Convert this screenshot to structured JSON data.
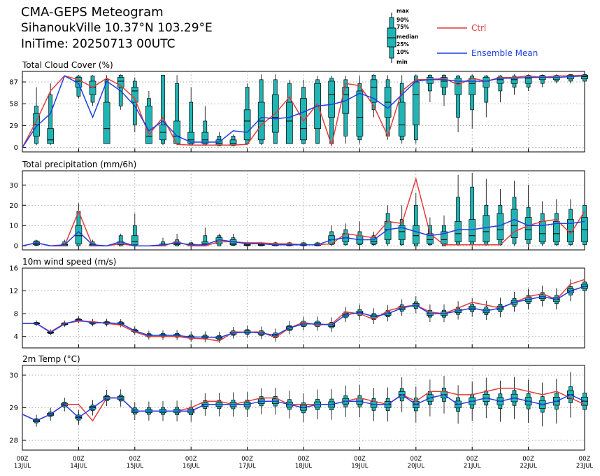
{
  "header": {
    "title": "CMA-GEPS Meteogram",
    "location": "SihanoukVille  10.37°N  103.29°E",
    "init_time": "IniTime: 20250713 00UTC"
  },
  "legend": {
    "key_labels": [
      "max",
      "90%",
      "75%",
      "median",
      "25%",
      "10%",
      "min"
    ],
    "ctrl_label": "Ctrl",
    "mean_label": "Ensemble Mean",
    "ctrl_color": "#e03c3c",
    "mean_color": "#1f3fe0",
    "box_color": "#20b5b5"
  },
  "chart_data": [
    {
      "type": "box",
      "title": "Total Cloud Cover (%)",
      "ylim": [
        -6,
        101
      ],
      "yticks": [
        0,
        29,
        58,
        87
      ],
      "xticks": [
        "00Z 13JUL",
        "00Z 14JUL",
        "00Z 15JUL",
        "00Z 16JUL",
        "00Z 17JUL",
        "00Z 18JUL",
        "00Z 19JUL",
        "00Z 20JUL",
        "00Z 21JUL",
        "00Z 22JUL",
        "00Z 23JUL"
      ],
      "x_hours": [
        0,
        6,
        12,
        18,
        24,
        30,
        36,
        42,
        48,
        54,
        60,
        66,
        72,
        78,
        84,
        90,
        96,
        102,
        108,
        114,
        120,
        126,
        132,
        138,
        144,
        150,
        156,
        162,
        168,
        174,
        180,
        186,
        192,
        198,
        204,
        210,
        216,
        222,
        228,
        234,
        240
      ],
      "ctrl": [
        0,
        35,
        75,
        95,
        90,
        80,
        92,
        82,
        65,
        17,
        40,
        4,
        3,
        3,
        3,
        3,
        4,
        30,
        45,
        67,
        35,
        58,
        3,
        85,
        82,
        55,
        15,
        75,
        90,
        90,
        92,
        83,
        92,
        88,
        93,
        93,
        95,
        93,
        95,
        95,
        96
      ],
      "mean": [
        0,
        28,
        45,
        95,
        85,
        40,
        88,
        75,
        55,
        22,
        35,
        15,
        7,
        7,
        7,
        22,
        20,
        40,
        38,
        40,
        47,
        55,
        57,
        62,
        72,
        65,
        52,
        70,
        88,
        90,
        90,
        88,
        88,
        88,
        92,
        92,
        93,
        93,
        93,
        94,
        95
      ],
      "boxes": [
        null,
        [
          3,
          5,
          15,
          30,
          45,
          55,
          80
        ],
        [
          3,
          5,
          5,
          10,
          25,
          70,
          85
        ],
        null,
        [
          65,
          68,
          80,
          88,
          93,
          95,
          96
        ],
        [
          55,
          60,
          70,
          80,
          88,
          95,
          96
        ],
        [
          5,
          5,
          5,
          25,
          60,
          90,
          96
        ],
        [
          50,
          55,
          80,
          88,
          93,
          96,
          97
        ],
        [
          20,
          30,
          60,
          75,
          80,
          88,
          93
        ],
        [
          5,
          5,
          5,
          15,
          55,
          65,
          75
        ],
        [
          3,
          5,
          10,
          20,
          30,
          96,
          96
        ],
        [
          3,
          5,
          5,
          15,
          35,
          85,
          96
        ],
        [
          2,
          3,
          5,
          10,
          20,
          60,
          80
        ],
        [
          2,
          3,
          5,
          10,
          20,
          35,
          55
        ],
        [
          2,
          2,
          3,
          5,
          10,
          15,
          20
        ],
        [
          2,
          2,
          3,
          5,
          10,
          15,
          17
        ],
        [
          3,
          5,
          10,
          35,
          50,
          80,
          85
        ],
        [
          3,
          5,
          10,
          35,
          60,
          90,
          97
        ],
        [
          5,
          5,
          20,
          40,
          70,
          90,
          97
        ],
        [
          5,
          5,
          5,
          35,
          60,
          85,
          90
        ],
        [
          5,
          5,
          10,
          25,
          65,
          80,
          90
        ],
        [
          5,
          5,
          25,
          55,
          85,
          90,
          95
        ],
        [
          5,
          5,
          40,
          70,
          88,
          92,
          95
        ],
        [
          5,
          15,
          45,
          70,
          80,
          90,
          95
        ],
        [
          5,
          10,
          15,
          40,
          75,
          85,
          95
        ],
        [
          40,
          50,
          60,
          80,
          90,
          96,
          97
        ],
        [
          10,
          15,
          40,
          60,
          80,
          90,
          96
        ],
        [
          5,
          10,
          15,
          30,
          60,
          85,
          96
        ],
        [
          5,
          10,
          30,
          70,
          87,
          95,
          97
        ],
        [
          60,
          75,
          85,
          90,
          93,
          96,
          97
        ],
        [
          55,
          70,
          80,
          88,
          93,
          96,
          97
        ],
        [
          20,
          40,
          70,
          85,
          92,
          95,
          96
        ],
        [
          25,
          50,
          70,
          85,
          92,
          95,
          97
        ],
        [
          40,
          60,
          80,
          88,
          93,
          95,
          96
        ],
        [
          60,
          75,
          85,
          90,
          93,
          95,
          96
        ],
        [
          70,
          80,
          85,
          90,
          93,
          95,
          97
        ],
        [
          75,
          80,
          85,
          92,
          95,
          96,
          97
        ],
        [
          80,
          85,
          90,
          93,
          95,
          96,
          97
        ],
        [
          85,
          88,
          90,
          93,
          95,
          96,
          97
        ],
        [
          85,
          88,
          91,
          94,
          96,
          97,
          97
        ],
        [
          85,
          88,
          91,
          94,
          96,
          97,
          97
        ]
      ]
    },
    {
      "type": "box",
      "title": "Total precipitation (mm/6h)",
      "ylim": [
        -2,
        37
      ],
      "yticks": [
        0,
        10,
        20,
        30
      ],
      "xticks": [
        "00Z 13JUL",
        "00Z 14JUL",
        "00Z 15JUL",
        "00Z 16JUL",
        "00Z 17JUL",
        "00Z 18JUL",
        "00Z 19JUL",
        "00Z 20JUL",
        "00Z 21JUL",
        "00Z 22JUL",
        "00Z 23JUL"
      ],
      "x_hours": [
        0,
        6,
        12,
        18,
        24,
        30,
        36,
        42,
        48,
        54,
        60,
        66,
        72,
        78,
        84,
        90,
        96,
        102,
        108,
        114,
        120,
        126,
        132,
        138,
        144,
        150,
        156,
        162,
        168,
        174,
        180,
        186,
        192,
        198,
        204,
        210,
        216,
        222,
        228,
        234,
        240
      ],
      "ctrl": [
        0,
        1.5,
        0,
        0,
        17,
        0,
        0,
        1,
        0,
        0,
        0,
        2,
        0,
        0,
        2,
        2,
        1.5,
        1.5,
        1,
        1,
        0.5,
        0.5,
        1,
        6,
        5,
        4,
        12,
        11,
        33,
        6,
        0.5,
        0.5,
        0.5,
        0.5,
        0.5,
        7,
        10,
        12,
        13,
        6,
        17
      ],
      "mean": [
        0,
        1.5,
        0,
        0.5,
        7,
        0.5,
        0,
        2,
        0,
        0,
        0.5,
        1.5,
        0.5,
        0.5,
        3,
        2,
        1,
        1,
        0.5,
        0.5,
        0.5,
        0.5,
        3,
        4,
        3,
        3,
        8,
        9,
        7,
        5,
        6,
        8,
        8,
        9,
        10,
        13,
        10,
        10,
        11,
        11,
        12
      ],
      "boxes": [
        null,
        [
          0,
          0.2,
          0.5,
          1,
          2,
          2.5,
          3
        ],
        null,
        [
          0,
          0,
          0,
          0.5,
          1,
          2,
          3
        ],
        [
          0,
          0,
          1,
          5,
          10,
          17,
          21
        ],
        [
          0,
          0,
          0,
          0.5,
          1,
          2,
          3
        ],
        null,
        [
          0,
          0,
          0.5,
          1,
          2,
          5,
          6
        ],
        [
          0,
          0,
          0.5,
          2,
          5,
          10,
          16
        ],
        null,
        [
          0,
          0,
          0,
          0.3,
          1,
          2,
          4
        ],
        [
          0,
          0,
          0.5,
          1,
          2,
          3,
          6
        ],
        [
          0,
          0,
          0,
          0.5,
          1,
          1.5,
          2
        ],
        [
          0,
          0,
          0.5,
          1,
          2,
          5,
          9
        ],
        [
          0,
          0,
          1,
          2,
          4,
          5,
          6
        ],
        [
          0,
          0.2,
          0.5,
          1,
          3,
          4,
          6
        ],
        [
          0,
          0,
          0.2,
          0.5,
          1,
          1.5,
          2
        ],
        [
          0,
          0,
          0.2,
          0.5,
          1,
          1.5,
          2
        ],
        [
          0,
          0,
          0.2,
          0.5,
          1,
          1.5,
          2
        ],
        [
          0,
          0,
          0.2,
          0.5,
          1,
          1.5,
          2
        ],
        [
          0,
          0,
          0.2,
          0.5,
          1,
          1.5,
          2
        ],
        [
          0,
          0,
          0.2,
          0.5,
          1,
          1.5,
          2
        ],
        [
          0,
          0.5,
          1,
          3,
          5,
          7,
          10
        ],
        [
          0,
          0.5,
          2,
          4,
          6,
          8,
          11
        ],
        [
          0,
          0.5,
          1,
          3,
          5,
          7,
          12
        ],
        [
          0,
          0.5,
          1,
          2,
          4,
          5,
          7
        ],
        [
          0,
          1,
          3,
          8,
          12,
          16,
          20
        ],
        [
          0,
          0.5,
          3,
          7,
          10,
          13,
          20
        ],
        [
          0,
          0,
          1,
          5,
          10,
          20,
          26
        ],
        [
          0,
          0.5,
          1,
          3,
          6,
          10,
          14
        ],
        [
          0,
          0,
          1,
          3,
          7,
          10,
          15
        ],
        [
          0,
          0.5,
          2,
          6,
          12,
          24,
          35
        ],
        [
          0,
          0.5,
          2,
          5,
          13,
          29,
          36
        ],
        [
          0,
          0.5,
          2,
          7,
          15,
          20,
          33
        ],
        [
          0,
          0.5,
          3,
          8,
          16,
          20,
          28
        ],
        [
          0,
          1,
          4,
          10,
          18,
          24,
          32
        ],
        [
          0,
          1,
          3,
          8,
          14,
          19,
          30
        ],
        [
          0,
          1,
          2,
          6,
          12,
          16,
          22
        ],
        [
          0,
          0.5,
          2,
          6,
          12,
          16,
          23
        ],
        [
          0,
          0.5,
          2,
          7,
          13,
          18,
          23
        ],
        [
          0,
          0.5,
          2,
          8,
          14,
          20,
          25
        ]
      ]
    },
    {
      "type": "box",
      "title": "10m wind speed (m/s)",
      "ylim": [
        2,
        16
      ],
      "yticks": [
        4,
        8,
        12,
        16
      ],
      "xticks": [
        "00Z 13JUL",
        "00Z 14JUL",
        "00Z 15JUL",
        "00Z 16JUL",
        "00Z 17JUL",
        "00Z 18JUL",
        "00Z 19JUL",
        "00Z 20JUL",
        "00Z 21JUL",
        "00Z 22JUL",
        "00Z 23JUL"
      ],
      "x_hours": [
        0,
        6,
        12,
        18,
        24,
        30,
        36,
        42,
        48,
        54,
        60,
        66,
        72,
        78,
        84,
        90,
        96,
        102,
        108,
        114,
        120,
        126,
        132,
        138,
        144,
        150,
        156,
        162,
        168,
        174,
        180,
        186,
        192,
        198,
        204,
        210,
        216,
        222,
        228,
        234,
        240
      ],
      "ctrl": [
        6.3,
        6.3,
        4.8,
        6.3,
        6.7,
        6.6,
        6.3,
        6.0,
        4.8,
        4.0,
        4.0,
        4.0,
        3.7,
        3.6,
        3.2,
        4.8,
        4.8,
        4.8,
        3.8,
        5.5,
        6.5,
        6.0,
        6.2,
        8.3,
        8.0,
        7.0,
        8.5,
        9.2,
        9.5,
        8.3,
        8.0,
        9.0,
        10.0,
        9.5,
        9.0,
        10.0,
        11.0,
        11.5,
        10.5,
        13.2,
        14.0
      ],
      "mean": [
        6.3,
        6.3,
        4.7,
        6.2,
        6.9,
        6.4,
        6.4,
        6.3,
        5.0,
        4.2,
        4.2,
        4.2,
        3.9,
        3.9,
        3.8,
        4.6,
        4.8,
        4.6,
        4.2,
        5.5,
        6.2,
        6.2,
        6.0,
        7.8,
        8.2,
        7.5,
        8.0,
        9.0,
        9.5,
        8.0,
        8.0,
        8.5,
        9.0,
        8.5,
        9.0,
        10.0,
        10.5,
        11.0,
        10.5,
        12.0,
        12.8
      ]
    },
    {
      "type": "box",
      "title": "2m Temp (°C)",
      "ylim": [
        27.7,
        30.3
      ],
      "yticks": [
        28,
        29,
        30
      ],
      "xticks": [
        "00Z 13JUL",
        "00Z 14JUL",
        "00Z 15JUL",
        "00Z 16JUL",
        "00Z 17JUL",
        "00Z 18JUL",
        "00Z 19JUL",
        "00Z 20JUL",
        "00Z 21JUL",
        "00Z 22JUL",
        "00Z 23JUL"
      ],
      "x_hours": [
        0,
        6,
        12,
        18,
        24,
        30,
        36,
        42,
        48,
        54,
        60,
        66,
        72,
        78,
        84,
        90,
        96,
        102,
        108,
        114,
        120,
        126,
        132,
        138,
        144,
        150,
        156,
        162,
        168,
        174,
        180,
        186,
        192,
        198,
        204,
        210,
        216,
        222,
        228,
        234,
        240
      ],
      "ctrl": [
        28.8,
        28.6,
        28.8,
        29.1,
        29.1,
        28.6,
        29.3,
        29.3,
        28.9,
        28.9,
        28.9,
        28.9,
        29.0,
        29.2,
        29.2,
        29.1,
        29.2,
        29.3,
        29.3,
        29.1,
        29.1,
        29.1,
        29.1,
        29.2,
        29.3,
        29.2,
        29.1,
        29.4,
        29.2,
        29.5,
        29.5,
        29.4,
        29.4,
        29.5,
        29.6,
        29.6,
        29.5,
        29.4,
        29.5,
        29.3,
        29.1
      ],
      "mean": [
        28.8,
        28.6,
        28.8,
        29.1,
        28.7,
        29.0,
        29.3,
        29.3,
        28.9,
        28.9,
        28.9,
        28.9,
        28.9,
        29.1,
        29.1,
        29.1,
        29.1,
        29.2,
        29.2,
        29.1,
        29.0,
        29.1,
        29.1,
        29.2,
        29.2,
        29.1,
        29.1,
        29.4,
        29.1,
        29.3,
        29.4,
        29.1,
        29.2,
        29.3,
        29.2,
        29.3,
        29.2,
        29.1,
        29.2,
        29.4,
        29.2
      ]
    }
  ]
}
